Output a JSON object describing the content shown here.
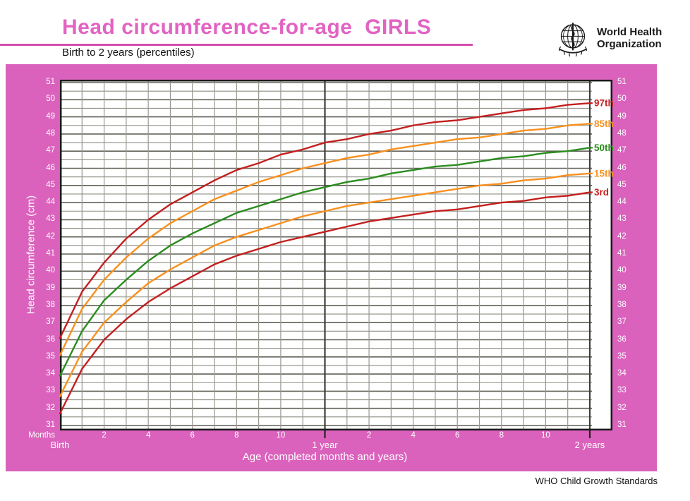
{
  "header": {
    "title": "Head circumference-for-age  GIRLS",
    "subtitle": "Birth to 2 years (percentiles)"
  },
  "logo": {
    "line1": "World Health",
    "line2": "Organization"
  },
  "footer": {
    "text": "WHO Child Growth Standards"
  },
  "colors": {
    "panel_pink": "#da62bc",
    "title_pink": "#e263c2",
    "rule_pink": "#d44fae",
    "frame": "#1a1a1a",
    "grid_major": "#62625a",
    "grid_minor": "#8e8e84",
    "grid_vertical": "#98988e",
    "grid_year": "#3e3d37",
    "red": "#c41f1f",
    "orange": "#f8901e",
    "green": "#2b8c1e"
  },
  "chart_data": {
    "type": "line",
    "title": "Head circumference-for-age GIRLS — Birth to 2 years (percentiles)",
    "xlabel": "Age (completed months and years)",
    "ylabel": "Head circumference (cm)",
    "x_unit_label": "Months",
    "xlim": [
      0,
      24
    ],
    "ylim": [
      31,
      51
    ],
    "y_tick_step": 1,
    "y_minor_step": 0.5,
    "grid": "on",
    "legend_position": "right-end-labels",
    "x_ticks": [
      {
        "m": 0,
        "label": "Birth",
        "major": true
      },
      {
        "m": 2,
        "label": "2"
      },
      {
        "m": 4,
        "label": "4"
      },
      {
        "m": 6,
        "label": "6"
      },
      {
        "m": 8,
        "label": "8"
      },
      {
        "m": 10,
        "label": "10"
      },
      {
        "m": 12,
        "label": "1 year",
        "major": true
      },
      {
        "m": 14,
        "label": "2"
      },
      {
        "m": 16,
        "label": "4"
      },
      {
        "m": 18,
        "label": "6"
      },
      {
        "m": 20,
        "label": "8"
      },
      {
        "m": 22,
        "label": "10"
      },
      {
        "m": 24,
        "label": "2 years",
        "major": true
      }
    ],
    "x_months": [
      0,
      1,
      2,
      3,
      4,
      5,
      6,
      7,
      8,
      9,
      10,
      11,
      12,
      13,
      14,
      15,
      16,
      17,
      18,
      19,
      20,
      21,
      22,
      23,
      24
    ],
    "series": [
      {
        "name": "97th",
        "color_key": "red",
        "values": [
          36.1,
          38.8,
          40.5,
          41.9,
          43.0,
          43.9,
          44.6,
          45.3,
          45.9,
          46.3,
          46.8,
          47.1,
          47.5,
          47.7,
          48.0,
          48.2,
          48.5,
          48.7,
          48.8,
          49.0,
          49.2,
          49.4,
          49.5,
          49.7,
          49.8
        ]
      },
      {
        "name": "85th",
        "color_key": "orange",
        "values": [
          35.1,
          37.8,
          39.5,
          40.8,
          41.9,
          42.8,
          43.5,
          44.2,
          44.7,
          45.2,
          45.6,
          46.0,
          46.3,
          46.6,
          46.8,
          47.1,
          47.3,
          47.5,
          47.7,
          47.8,
          48.0,
          48.2,
          48.3,
          48.5,
          48.6
        ]
      },
      {
        "name": "50th",
        "color_key": "green",
        "values": [
          33.9,
          36.5,
          38.3,
          39.5,
          40.6,
          41.5,
          42.2,
          42.8,
          43.4,
          43.8,
          44.2,
          44.6,
          44.9,
          45.2,
          45.4,
          45.7,
          45.9,
          46.1,
          46.2,
          46.4,
          46.6,
          46.7,
          46.9,
          47.0,
          47.2
        ]
      },
      {
        "name": "15th",
        "color_key": "orange",
        "values": [
          32.7,
          35.3,
          37.0,
          38.2,
          39.3,
          40.1,
          40.8,
          41.5,
          42.0,
          42.4,
          42.8,
          43.2,
          43.5,
          43.8,
          44.0,
          44.2,
          44.4,
          44.6,
          44.8,
          45.0,
          45.1,
          45.3,
          45.4,
          45.6,
          45.7
        ]
      },
      {
        "name": "3rd",
        "color_key": "red",
        "values": [
          31.7,
          34.3,
          36.0,
          37.2,
          38.2,
          39.0,
          39.7,
          40.4,
          40.9,
          41.3,
          41.7,
          42.0,
          42.3,
          42.6,
          42.9,
          43.1,
          43.3,
          43.5,
          43.6,
          43.8,
          44.0,
          44.1,
          44.3,
          44.4,
          44.6
        ]
      }
    ]
  }
}
